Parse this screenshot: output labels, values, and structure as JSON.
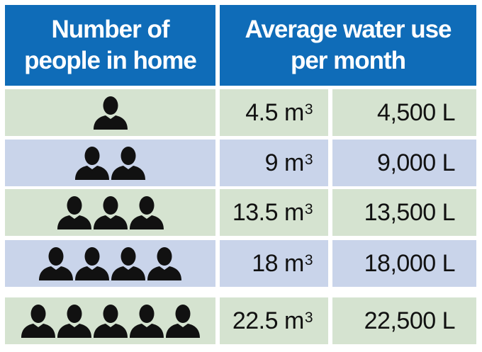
{
  "chart_data": {
    "type": "table",
    "columns": [
      "Number of people in home",
      "Average water use per month"
    ],
    "header": {
      "col1_line1": "Number of",
      "col1_line2": "people in home",
      "col2_line1": "Average water use",
      "col2_line2": "per month"
    },
    "rows": [
      {
        "people": 1,
        "cubic_value": "4.5 m",
        "liters": "4,500 L"
      },
      {
        "people": 2,
        "cubic_value": "9 m",
        "liters": "9,000 L"
      },
      {
        "people": 3,
        "cubic_value": "13.5 m",
        "liters": "13,500 L"
      },
      {
        "people": 4,
        "cubic_value": "18 m",
        "liters": "18,000 L"
      },
      {
        "people": 5,
        "cubic_value": "22.5 m",
        "liters": "22,500 L"
      }
    ],
    "unit_exponent": "3",
    "person_icon": "person-icon",
    "colors": {
      "header": "#0f6cb8",
      "row_green": "#d5e3d0",
      "row_blue": "#c9d4ea",
      "text": "#111111",
      "icon": "#111111"
    }
  }
}
